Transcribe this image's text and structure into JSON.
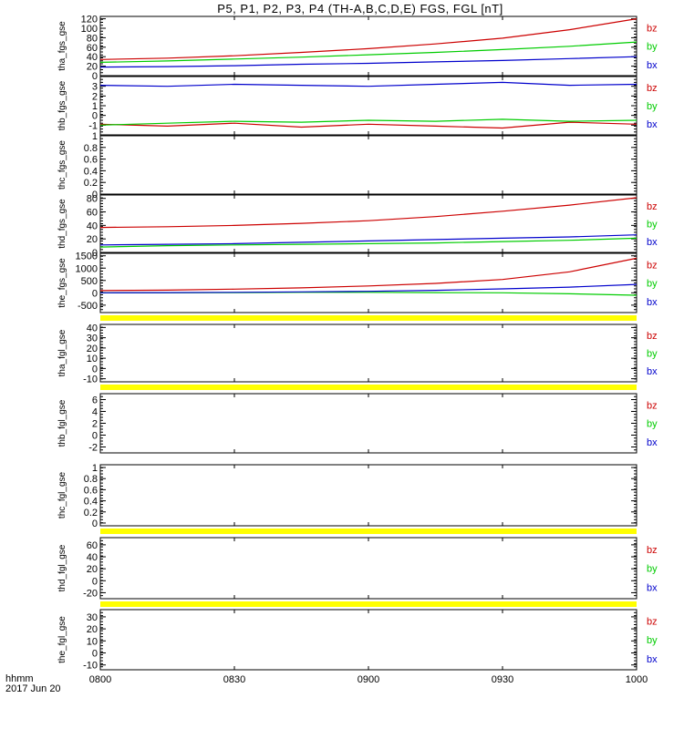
{
  "title": "P5, P1, P2, P3, P4 (TH-A,B,C,D,E) FGS, FGL [nT]",
  "footer": {
    "time_format": "hhmm",
    "date": "2017 Jun 20"
  },
  "x_ticks": [
    "0800",
    "0830",
    "0900",
    "0930",
    "1000"
  ],
  "legend": {
    "bz": "bz",
    "by": "by",
    "bx": "bx"
  },
  "colors": {
    "bx": "#0000cc",
    "by": "#00cc00",
    "bz": "#cc0000",
    "flag": "#ffff00"
  },
  "chart_data": [
    {
      "type": "line",
      "ylabel": "tha_fgs_gse",
      "ylim": [
        0,
        125
      ],
      "yticks": [
        0,
        20,
        40,
        60,
        80,
        100,
        120
      ],
      "legend_order": [
        "bz",
        "by",
        "bx"
      ],
      "x": [
        0,
        15,
        30,
        45,
        60,
        75,
        90,
        105,
        120
      ],
      "series": [
        {
          "name": "bz",
          "values": [
            34,
            37,
            42,
            49,
            57,
            67,
            79,
            97,
            120
          ]
        },
        {
          "name": "by",
          "values": [
            28,
            31,
            35,
            39,
            44,
            49,
            55,
            62,
            71
          ]
        },
        {
          "name": "bx",
          "values": [
            18,
            19,
            21,
            24,
            26,
            29,
            32,
            36,
            40
          ]
        }
      ]
    },
    {
      "type": "line",
      "ylabel": "thb_fgs_gse",
      "ylim": [
        -2,
        4
      ],
      "yticks": [
        -1,
        0,
        1,
        2,
        3
      ],
      "legend_order": [
        "bz",
        "by",
        "bx"
      ],
      "x": [
        0,
        15,
        30,
        45,
        60,
        75,
        90,
        105,
        120
      ],
      "series": [
        {
          "name": "bz",
          "values": [
            -0.9,
            -1.1,
            -0.8,
            -1.2,
            -0.9,
            -1.1,
            -1.3,
            -0.7,
            -0.9
          ]
        },
        {
          "name": "by",
          "values": [
            -1.0,
            -0.8,
            -0.6,
            -0.7,
            -0.5,
            -0.6,
            -0.4,
            -0.6,
            -0.5
          ]
        },
        {
          "name": "bx",
          "values": [
            3.1,
            3.0,
            3.2,
            3.1,
            3.0,
            3.2,
            3.4,
            3.1,
            3.2
          ]
        }
      ]
    },
    {
      "type": "line",
      "ylabel": "thc_fgs_gse",
      "ylim": [
        0,
        1.0
      ],
      "yticks": [
        0.0,
        0.2,
        0.4,
        0.6,
        0.8,
        1.0
      ],
      "legend_order": [],
      "x": [],
      "series": []
    },
    {
      "type": "line",
      "ylabel": "thd_fgs_gse",
      "ylim": [
        0,
        85
      ],
      "yticks": [
        0,
        20,
        40,
        60,
        80
      ],
      "legend_order": [
        "bz",
        "by",
        "bx"
      ],
      "x": [
        0,
        15,
        30,
        45,
        60,
        75,
        90,
        105,
        120
      ],
      "series": [
        {
          "name": "bz",
          "values": [
            37,
            38,
            40,
            43,
            47,
            53,
            61,
            70,
            81
          ]
        },
        {
          "name": "by",
          "values": [
            8,
            10,
            11,
            12,
            13,
            14,
            16,
            18,
            21
          ]
        },
        {
          "name": "bx",
          "values": [
            11,
            12,
            13,
            15,
            17,
            19,
            21,
            23,
            26
          ]
        }
      ]
    },
    {
      "type": "line",
      "ylabel": "the_fgs_gse",
      "ylim": [
        -800,
        1600
      ],
      "yticks": [
        -500,
        0,
        500,
        1000,
        1500
      ],
      "legend_order": [
        "bz",
        "by",
        "bx"
      ],
      "flag_bar_below": true,
      "x": [
        0,
        15,
        30,
        45,
        60,
        75,
        90,
        105,
        120
      ],
      "series": [
        {
          "name": "bz",
          "values": [
            90,
            110,
            150,
            200,
            280,
            380,
            540,
            850,
            1400
          ]
        },
        {
          "name": "by",
          "values": [
            0,
            0,
            10,
            20,
            20,
            10,
            0,
            -40,
            -100
          ]
        },
        {
          "name": "bx",
          "values": [
            0,
            10,
            20,
            40,
            60,
            100,
            160,
            230,
            340
          ]
        }
      ]
    },
    {
      "type": "line",
      "ylabel": "tha_fgl_gse",
      "ylim": [
        -13,
        43
      ],
      "yticks": [
        -10,
        0,
        10,
        20,
        30,
        40
      ],
      "legend_order": [
        "bz",
        "by",
        "bx"
      ],
      "flag_bar_below": true,
      "x": [],
      "series": []
    },
    {
      "type": "line",
      "ylabel": "thb_fgl_gse",
      "ylim": [
        -3,
        7
      ],
      "yticks": [
        -2,
        0,
        2,
        4,
        6
      ],
      "legend_order": [
        "bz",
        "by",
        "bx"
      ],
      "x": [],
      "series": []
    },
    {
      "type": "line",
      "ylabel": "thc_fgl_gse",
      "ylim": [
        -0.05,
        1.05
      ],
      "yticks": [
        0.0,
        0.2,
        0.4,
        0.6,
        0.8,
        1.0
      ],
      "legend_order": [],
      "flag_bar_below": true,
      "x": [],
      "series": []
    },
    {
      "type": "line",
      "ylabel": "thd_fgl_gse",
      "ylim": [
        -30,
        72
      ],
      "yticks": [
        -20,
        0,
        20,
        40,
        60
      ],
      "legend_order": [
        "bz",
        "by",
        "bx"
      ],
      "flag_bar_below": true,
      "x": [],
      "series": []
    },
    {
      "type": "line",
      "ylabel": "the_fgl_gse",
      "ylim": [
        -14,
        36
      ],
      "yticks": [
        -10,
        0,
        10,
        20,
        30
      ],
      "legend_order": [
        "bz",
        "by",
        "bx"
      ],
      "x": [],
      "series": []
    }
  ]
}
